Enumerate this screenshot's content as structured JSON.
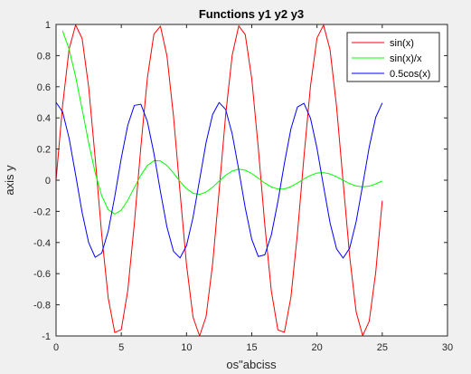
{
  "chart_data": {
    "type": "line",
    "title": "Functions y1 y2 y3",
    "xlabel": "os\"abciss",
    "ylabel": "axis y",
    "xlim": [
      0,
      30
    ],
    "ylim": [
      -1,
      1
    ],
    "xticks": [
      0,
      5,
      10,
      15,
      20,
      25,
      30
    ],
    "yticks": [
      -1,
      -0.8,
      -0.6,
      -0.4,
      -0.2,
      0,
      0.2,
      0.4,
      0.6,
      0.8,
      1
    ],
    "xtick_labels": [
      "0",
      "5",
      "10",
      "15",
      "20",
      "25",
      "30"
    ],
    "ytick_labels": [
      "-1",
      "-0.8",
      "-0.6",
      "-0.4",
      "-0.2",
      "0",
      "0.2",
      "0.4",
      "0.6",
      "0.8",
      "1"
    ],
    "grid": false,
    "legend_position": "top-right",
    "x": [
      0.0,
      0.5,
      1.0,
      1.5,
      2.0,
      2.5,
      3.0,
      3.5,
      4.0,
      4.5,
      5.0,
      5.5,
      6.0,
      6.5,
      7.0,
      7.5,
      8.0,
      8.5,
      9.0,
      9.5,
      10.0,
      10.5,
      11.0,
      11.5,
      12.0,
      12.5,
      13.0,
      13.5,
      14.0,
      14.5,
      15.0,
      15.5,
      16.0,
      16.5,
      17.0,
      17.5,
      18.0,
      18.5,
      19.0,
      19.5,
      20.0,
      20.5,
      21.0,
      21.5,
      22.0,
      22.5,
      23.0,
      23.5,
      24.0,
      24.5,
      25.0
    ],
    "series": [
      {
        "name": "sin(x)",
        "color": "#ff0000",
        "values": [
          0.0,
          0.479,
          0.841,
          0.997,
          0.909,
          0.598,
          0.141,
          -0.351,
          -0.757,
          -0.978,
          -0.959,
          -0.706,
          -0.279,
          0.215,
          0.657,
          0.938,
          0.989,
          0.798,
          0.412,
          -0.075,
          -0.544,
          -0.88,
          -1.0,
          -0.875,
          -0.537,
          -0.066,
          0.42,
          0.803,
          0.991,
          0.935,
          0.65,
          0.206,
          -0.288,
          -0.712,
          -0.961,
          -0.976,
          -0.751,
          -0.342,
          0.15,
          0.605,
          0.913,
          0.996,
          0.837,
          0.471,
          -0.009,
          -0.487,
          -0.846,
          -0.998,
          -0.906,
          -0.591,
          -0.132
        ]
      },
      {
        "name": "sin(x)/x",
        "color": "#00ff00",
        "values": [
          null,
          0.959,
          0.841,
          0.665,
          0.455,
          0.239,
          0.047,
          -0.1,
          -0.189,
          -0.217,
          -0.192,
          -0.128,
          -0.047,
          0.033,
          0.094,
          0.125,
          0.124,
          0.094,
          0.046,
          -0.008,
          -0.054,
          -0.084,
          -0.091,
          -0.076,
          -0.045,
          -0.005,
          0.032,
          0.059,
          0.071,
          0.064,
          0.043,
          0.013,
          -0.018,
          -0.043,
          -0.057,
          -0.056,
          -0.042,
          -0.018,
          0.008,
          0.031,
          0.046,
          0.049,
          0.04,
          0.022,
          -0.0,
          -0.022,
          -0.037,
          -0.042,
          -0.038,
          -0.024,
          -0.005
        ]
      },
      {
        "name": "0.5cos(x)",
        "color": "#0000ff",
        "values": [
          0.5,
          0.439,
          0.27,
          0.035,
          -0.208,
          -0.401,
          -0.495,
          -0.468,
          -0.327,
          -0.105,
          0.142,
          0.354,
          0.48,
          0.488,
          0.377,
          0.173,
          -0.073,
          -0.301,
          -0.456,
          -0.499,
          -0.42,
          -0.238,
          0.002,
          0.242,
          0.422,
          0.499,
          0.454,
          0.297,
          0.068,
          -0.177,
          -0.38,
          -0.49,
          -0.479,
          -0.351,
          -0.138,
          0.108,
          0.33,
          0.47,
          0.494,
          0.398,
          0.204,
          -0.038,
          -0.274,
          -0.441,
          -0.5,
          -0.437,
          -0.266,
          -0.031,
          0.212,
          0.404,
          0.496
        ]
      }
    ]
  }
}
